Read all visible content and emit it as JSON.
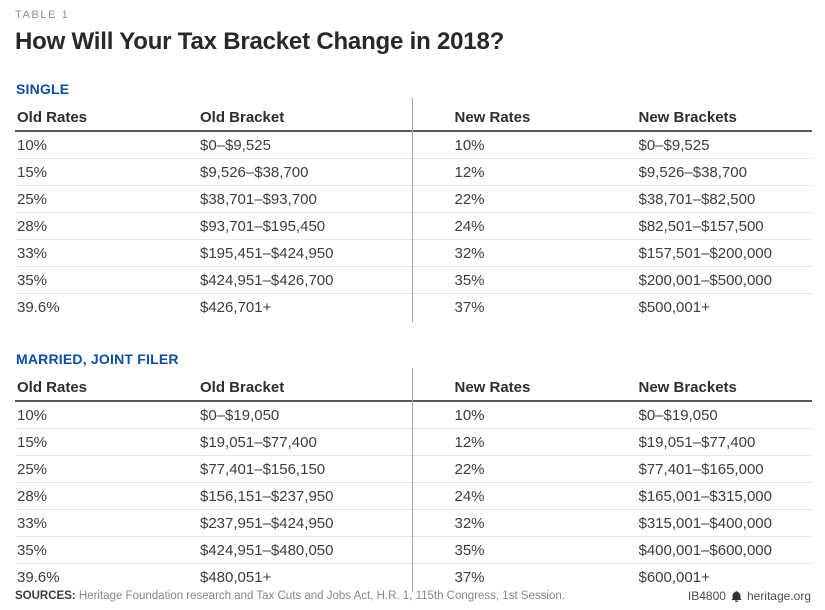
{
  "page": {
    "table_label": "TABLE 1",
    "title": "How Will Your Tax Bracket Change in 2018?"
  },
  "columns": {
    "old_rates": "Old Rates",
    "old_bracket": "Old Bracket",
    "new_rates": "New Rates",
    "new_brackets": "New Brackets"
  },
  "chart_data": {
    "type": "table",
    "title": "How Will Your Tax Bracket Change in 2018?",
    "tables": [
      {
        "section": "SINGLE",
        "columns": [
          "Old Rates",
          "Old Bracket",
          "New Rates",
          "New Brackets"
        ],
        "rows": [
          [
            "10%",
            "$0–$9,525",
            "10%",
            "$0–$9,525"
          ],
          [
            "15%",
            "$9,526–$38,700",
            "12%",
            "$9,526–$38,700"
          ],
          [
            "25%",
            "$38,701–$93,700",
            "22%",
            "$38,701–$82,500"
          ],
          [
            "28%",
            "$93,701–$195,450",
            "24%",
            "$82,501–$157,500"
          ],
          [
            "33%",
            "$195,451–$424,950",
            "32%",
            "$157,501–$200,000"
          ],
          [
            "35%",
            "$424,951–$426,700",
            "35%",
            "$200,001–$500,000"
          ],
          [
            "39.6%",
            "$426,701+",
            "37%",
            "$500,001+"
          ]
        ]
      },
      {
        "section": "MARRIED, JOINT FILER",
        "columns": [
          "Old Rates",
          "Old Bracket",
          "New Rates",
          "New Brackets"
        ],
        "rows": [
          [
            "10%",
            "$0–$19,050",
            "10%",
            "$0–$19,050"
          ],
          [
            "15%",
            "$19,051–$77,400",
            "12%",
            "$19,051–$77,400"
          ],
          [
            "25%",
            "$77,401–$156,150",
            "22%",
            "$77,401–$165,000"
          ],
          [
            "28%",
            "$156,151–$237,950",
            "24%",
            "$165,001–$315,000"
          ],
          [
            "33%",
            "$237,951–$424,950",
            "32%",
            "$315,001–$400,000"
          ],
          [
            "35%",
            "$424,951–$480,050",
            "35%",
            "$400,001–$600,000"
          ],
          [
            "39.6%",
            "$480,051+",
            "37%",
            "$600,001+"
          ]
        ]
      }
    ]
  },
  "footer": {
    "sources_label": "SOURCES:",
    "sources_text": " Heritage Foundation research and Tax Cuts and Jobs Act, H.R. 1, 115th Congress, 1st Session.",
    "doc_id": "IB4800",
    "site": "heritage.org",
    "logo_icon": "liberty-bell-icon"
  },
  "colors": {
    "accent_blue": "#0b4ea2",
    "title_text": "#26282c",
    "body_text": "#3b3d41",
    "muted_text": "#85878a",
    "header_rule": "#595b5f",
    "row_rule": "#e7e7e8",
    "divider": "#a5a7a9"
  }
}
